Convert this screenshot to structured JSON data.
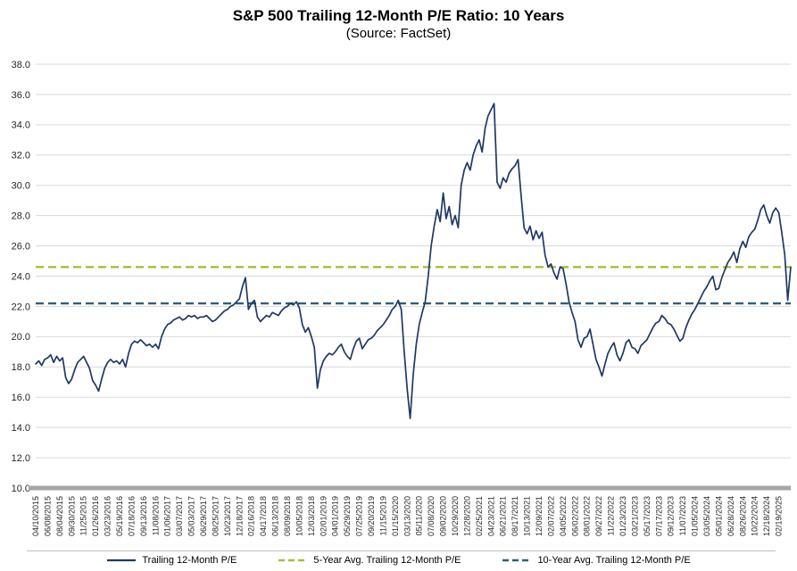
{
  "header": {
    "title": "S&P 500 Trailing 12-Month P/E Ratio: 10 Years",
    "subtitle": "(Source: FactSet)"
  },
  "colors": {
    "series": "#1f3864",
    "avg5": "#a2bf3a",
    "avg10": "#2f5e7c",
    "grid": "#d9d9d9",
    "axis": "#a6a6a6",
    "tick_text": "#262626"
  },
  "legend": [
    {
      "label": "Trailing 12-Month P/E",
      "style": "solid",
      "color": "#1f3864"
    },
    {
      "label": "5-Year Avg. Trailing 12-Month P/E",
      "style": "dashed",
      "color": "#a2bf3a"
    },
    {
      "label": "10-Year Avg. Trailing 12-Month P/E",
      "style": "dashed",
      "color": "#2f5e7c"
    }
  ],
  "chart_data": {
    "type": "line",
    "title": "S&P 500 Trailing 12-Month P/E Ratio: 10 Years",
    "subtitle": "(Source: FactSet)",
    "xlabel": "",
    "ylabel": "",
    "ylim": [
      10.0,
      38.0
    ],
    "ytick_step": 2.0,
    "grid": true,
    "legend_position": "bottom",
    "tick_every_points": 4,
    "x_tick_labels": [
      "04/10/2015",
      "06/08/2015",
      "08/04/2015",
      "09/30/2015",
      "11/25/2015",
      "01/26/2016",
      "03/23/2016",
      "05/19/2016",
      "07/18/2016",
      "09/13/2016",
      "11/08/2016",
      "01/06/2017",
      "03/07/2017",
      "05/03/2017",
      "06/29/2017",
      "08/25/2017",
      "10/23/2017",
      "12/18/2017",
      "02/16/2018",
      "04/17/2018",
      "06/13/2018",
      "08/09/2018",
      "10/05/2018",
      "12/03/2018",
      "02/01/2019",
      "04/01/2019",
      "05/29/2019",
      "07/25/2019",
      "09/20/2019",
      "11/15/2019",
      "01/15/2020",
      "03/13/2020",
      "05/11/2020",
      "07/08/2020",
      "09/02/2020",
      "10/29/2020",
      "12/28/2020",
      "02/25/2021",
      "04/23/2021",
      "06/21/2021",
      "08/17/2021",
      "10/13/2021",
      "12/09/2021",
      "02/07/2022",
      "04/05/2022",
      "06/02/2022",
      "08/01/2022",
      "09/27/2022",
      "11/22/2022",
      "01/23/2023",
      "03/21/2023",
      "05/17/2023",
      "07/17/2023",
      "09/12/2023",
      "11/07/2023",
      "01/05/2024",
      "03/05/2024",
      "05/01/2024",
      "06/28/2024",
      "08/26/2024",
      "10/22/2024",
      "12/18/2024",
      "02/19/2025"
    ],
    "series": [
      {
        "name": "Trailing 12-Month P/E",
        "style": "solid",
        "color": "#1f3864",
        "values": [
          18.2,
          18.4,
          18.1,
          18.5,
          18.6,
          18.8,
          18.3,
          18.7,
          18.4,
          18.6,
          17.3,
          16.9,
          17.2,
          17.8,
          18.3,
          18.5,
          18.7,
          18.3,
          17.9,
          17.1,
          16.8,
          16.4,
          17.2,
          17.9,
          18.3,
          18.5,
          18.3,
          18.4,
          18.2,
          18.5,
          18.0,
          18.9,
          19.5,
          19.7,
          19.6,
          19.8,
          19.6,
          19.4,
          19.5,
          19.3,
          19.5,
          19.2,
          20.0,
          20.5,
          20.8,
          20.9,
          21.1,
          21.2,
          21.3,
          21.1,
          21.2,
          21.4,
          21.3,
          21.4,
          21.2,
          21.3,
          21.3,
          21.4,
          21.2,
          21.0,
          21.1,
          21.3,
          21.5,
          21.7,
          21.8,
          22.0,
          22.1,
          22.3,
          22.5,
          23.3,
          23.9,
          21.8,
          22.2,
          22.4,
          21.3,
          21.0,
          21.2,
          21.4,
          21.3,
          21.6,
          21.5,
          21.4,
          21.7,
          21.9,
          22.0,
          22.2,
          22.1,
          22.3,
          21.9,
          20.8,
          20.3,
          20.6,
          20.0,
          19.3,
          16.6,
          17.8,
          18.4,
          18.7,
          18.9,
          18.8,
          19.0,
          19.3,
          19.5,
          19.0,
          18.7,
          18.5,
          19.2,
          19.7,
          19.9,
          19.2,
          19.5,
          19.8,
          19.9,
          20.1,
          20.4,
          20.6,
          20.8,
          21.1,
          21.4,
          21.8,
          22.0,
          22.4,
          21.8,
          19.0,
          16.5,
          14.6,
          17.5,
          19.5,
          20.8,
          21.6,
          22.3,
          24.0,
          26.0,
          27.3,
          28.4,
          27.6,
          29.5,
          27.8,
          28.6,
          27.4,
          28.0,
          27.2,
          30.0,
          31.0,
          31.5,
          31.0,
          32.0,
          32.6,
          33.0,
          32.2,
          33.8,
          34.6,
          35.0,
          35.4,
          30.2,
          29.8,
          30.5,
          30.2,
          30.8,
          31.1,
          31.3,
          31.7,
          29.3,
          27.2,
          26.8,
          27.3,
          26.4,
          27.0,
          26.5,
          26.9,
          25.4,
          24.6,
          24.8,
          24.2,
          23.8,
          24.6,
          24.5,
          23.5,
          22.3,
          21.6,
          21.0,
          19.8,
          19.3,
          19.9,
          20.0,
          20.5,
          19.5,
          18.5,
          18.0,
          17.4,
          18.2,
          18.9,
          19.3,
          19.6,
          18.8,
          18.4,
          18.9,
          19.6,
          19.8,
          19.3,
          19.2,
          18.9,
          19.4,
          19.6,
          19.8,
          20.2,
          20.6,
          20.9,
          21.0,
          21.4,
          21.2,
          20.9,
          20.8,
          20.5,
          20.1,
          19.7,
          19.9,
          20.6,
          21.1,
          21.5,
          21.8,
          22.2,
          22.6,
          23.0,
          23.3,
          23.7,
          24.0,
          23.1,
          23.2,
          23.9,
          24.4,
          24.9,
          25.2,
          25.6,
          24.9,
          25.8,
          26.3,
          25.9,
          26.6,
          26.9,
          27.1,
          27.7,
          28.4,
          28.7,
          28.0,
          27.5,
          28.2,
          28.5,
          28.2,
          26.9,
          25.4,
          22.4,
          24.6
        ]
      },
      {
        "name": "5-Year Avg. Trailing 12-Month P/E",
        "style": "dashed",
        "color": "#a2bf3a",
        "value": 24.6
      },
      {
        "name": "10-Year Avg. Trailing 12-Month P/E",
        "style": "dashed",
        "color": "#2f5e7c",
        "value": 22.2
      }
    ]
  }
}
